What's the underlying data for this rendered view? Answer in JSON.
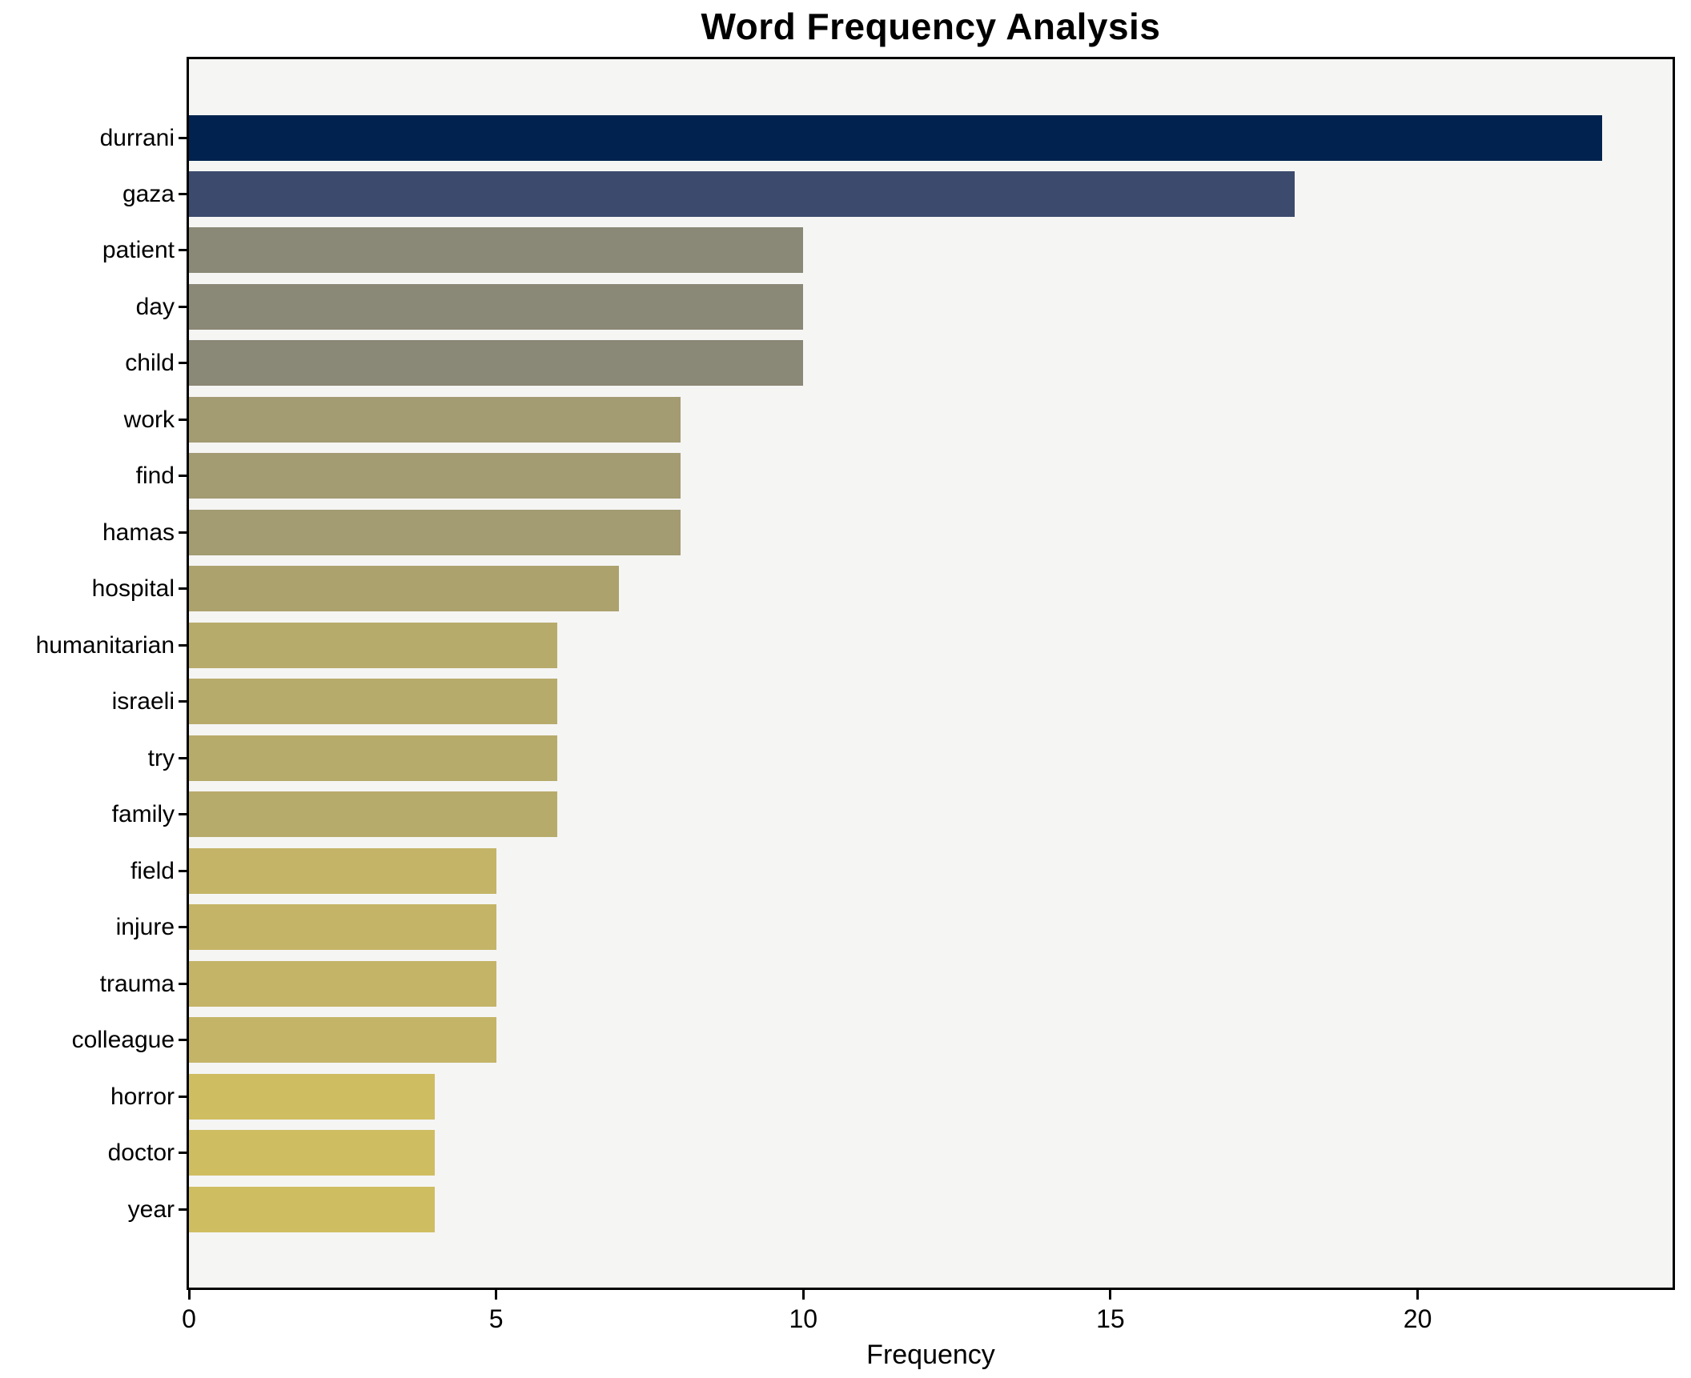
{
  "title": "Word Frequency Analysis",
  "xlabel": "Frequency",
  "chart_data": {
    "type": "bar",
    "orientation": "horizontal",
    "title": "Word Frequency Analysis",
    "xlabel": "Frequency",
    "ylabel": "",
    "categories": [
      "durrani",
      "gaza",
      "patient",
      "day",
      "child",
      "work",
      "find",
      "hamas",
      "hospital",
      "humanitarian",
      "israeli",
      "try",
      "family",
      "field",
      "injure",
      "trauma",
      "colleague",
      "horror",
      "doctor",
      "year"
    ],
    "values": [
      23,
      18,
      10,
      10,
      10,
      8,
      8,
      8,
      7,
      6,
      6,
      6,
      6,
      5,
      5,
      5,
      5,
      4,
      4,
      4
    ],
    "bar_colors": [
      "#01224e",
      "#3c4a6e",
      "#8a8876",
      "#8a8876",
      "#8a8876",
      "#a39b72",
      "#a39b72",
      "#a39b72",
      "#aca26e",
      "#b7ab6b",
      "#b7ab6b",
      "#b7ab6b",
      "#b7ab6b",
      "#c4b467",
      "#c4b467",
      "#c4b467",
      "#c4b467",
      "#cfbd61",
      "#cfbd61",
      "#cfbd61"
    ],
    "xlim": [
      0,
      24.15
    ],
    "x_ticks": [
      0,
      5,
      10,
      15,
      20
    ],
    "grid": false,
    "legend": null,
    "plot_background": "#f5f5f4",
    "figure_background": "#ffffff",
    "spine_color": "#000000"
  }
}
